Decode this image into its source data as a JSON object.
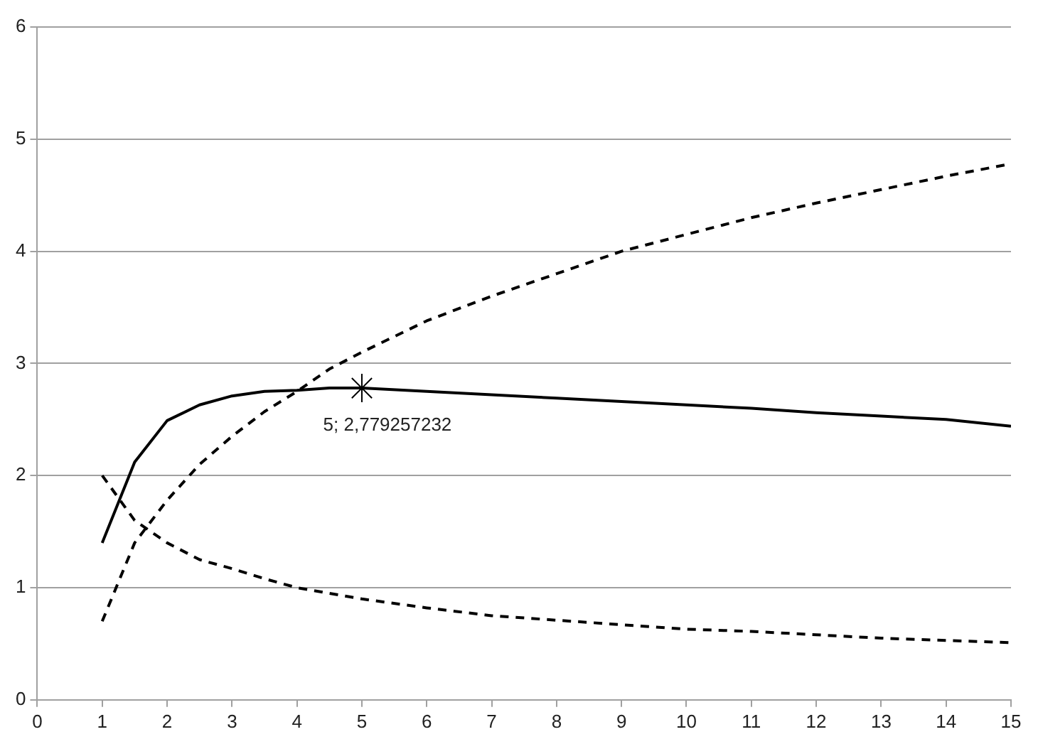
{
  "chart_data": {
    "type": "line",
    "x": [
      1,
      1.5,
      2,
      2.5,
      3,
      3.5,
      4,
      4.5,
      5,
      6,
      7,
      8,
      9,
      10,
      11,
      12,
      13,
      14,
      15
    ],
    "series": [
      {
        "color": "#000000",
        "line_style": "solid",
        "values": [
          1.4,
          2.12,
          2.49,
          2.63,
          2.71,
          2.75,
          2.76,
          2.78,
          2.78,
          2.75,
          2.72,
          2.69,
          2.66,
          2.63,
          2.6,
          2.56,
          2.53,
          2.5,
          2.44
        ]
      },
      {
        "color": "#000000",
        "line_style": "dashed",
        "values": [
          0.7,
          1.4,
          1.78,
          2.1,
          2.35,
          2.57,
          2.75,
          2.95,
          3.1,
          3.38,
          3.6,
          3.8,
          4.0,
          4.15,
          4.3,
          4.43,
          4.55,
          4.67,
          4.78
        ]
      },
      {
        "color": "#000000",
        "line_style": "dashed",
        "values": [
          2.0,
          1.6,
          1.4,
          1.25,
          1.17,
          1.08,
          1.0,
          0.95,
          0.9,
          0.82,
          0.75,
          0.71,
          0.67,
          0.63,
          0.61,
          0.58,
          0.55,
          0.53,
          0.51
        ]
      },
      {
        "type": "scatter",
        "color": "#000000",
        "marker": "cross",
        "x": [
          5
        ],
        "values": [
          2.78
        ]
      }
    ],
    "annotations": [
      {
        "text": "5; 2,779257232",
        "x": 5,
        "y": 2.78
      }
    ],
    "xlim": [
      0,
      15
    ],
    "xticks": [
      0,
      1,
      2,
      3,
      4,
      5,
      6,
      7,
      8,
      9,
      10,
      11,
      12,
      13,
      14,
      15
    ],
    "ylim": [
      0,
      6
    ],
    "yticks": [
      0,
      1,
      2,
      3,
      4,
      5,
      6
    ],
    "grid": "y",
    "legend": false
  }
}
